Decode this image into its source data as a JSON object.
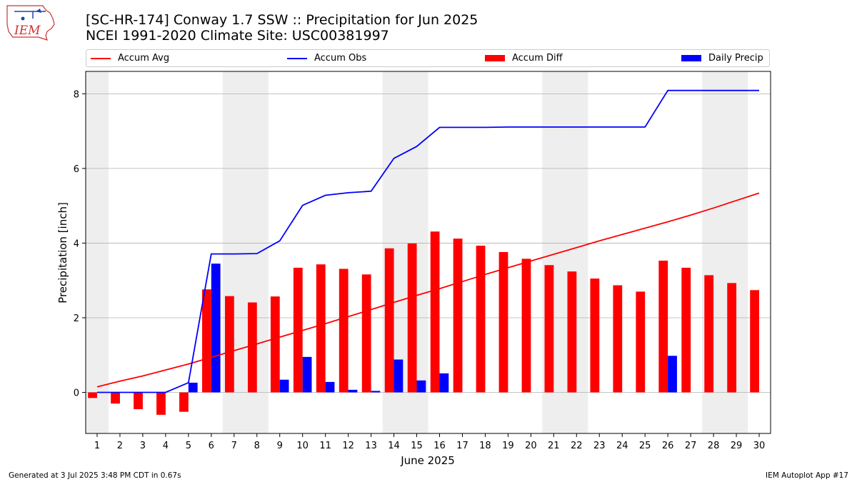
{
  "title": "[SC-HR-174] Conway 1.7 SSW :: Precipitation for Jun 2025",
  "subtitle": "NCEI 1991-2020 Climate Site: USC00381997",
  "logo_text": "IEM",
  "footer_left": "Generated at 3 Jul 2025 3:48 PM CDT in 0.67s",
  "footer_right": "IEM Autoplot App #17",
  "colors": {
    "accum_avg": "#ff0000",
    "accum_obs": "#0000ff",
    "accum_diff": "#ff0000",
    "daily_precip": "#0000ff",
    "weekend_band": "#eeeeee",
    "grid": "#b0b0b0"
  },
  "chart_data": {
    "type": "bar",
    "xlabel": "June 2025",
    "ylabel": "Precipitation [inch]",
    "x": [
      1,
      2,
      3,
      4,
      5,
      6,
      7,
      8,
      9,
      10,
      11,
      12,
      13,
      14,
      15,
      16,
      17,
      18,
      19,
      20,
      21,
      22,
      23,
      24,
      25,
      26,
      27,
      28,
      29,
      30
    ],
    "x_ticks": [
      "1",
      "2",
      "3",
      "4",
      "5",
      "6",
      "7",
      "8",
      "9",
      "10",
      "11",
      "12",
      "13",
      "14",
      "15",
      "16",
      "17",
      "18",
      "19",
      "20",
      "21",
      "22",
      "23",
      "24",
      "25",
      "26",
      "27",
      "28",
      "29",
      "30"
    ],
    "xlim": [
      0.5,
      30.5
    ],
    "ylim": [
      -1.1,
      8.6
    ],
    "y_ticks": [
      0,
      2,
      4,
      6,
      8
    ],
    "y_tick_labels": [
      "0",
      "2",
      "4",
      "6",
      "8"
    ],
    "grid": "horizontal",
    "legend_position": "top",
    "weekend_days": [
      1,
      7,
      8,
      14,
      15,
      21,
      22,
      28,
      29
    ],
    "series": [
      {
        "name": "Accum Avg",
        "kind": "line",
        "values": [
          0.15,
          0.3,
          0.44,
          0.6,
          0.76,
          0.94,
          1.12,
          1.3,
          1.48,
          1.66,
          1.84,
          2.03,
          2.22,
          2.41,
          2.6,
          2.78,
          2.97,
          3.16,
          3.34,
          3.52,
          3.7,
          3.88,
          4.06,
          4.23,
          4.4,
          4.57,
          4.75,
          4.94,
          5.14,
          5.34
        ]
      },
      {
        "name": "Accum Obs",
        "kind": "line",
        "values": [
          0.0,
          0.0,
          0.0,
          0.0,
          0.26,
          3.71,
          3.71,
          3.72,
          4.06,
          5.01,
          5.28,
          5.35,
          5.39,
          6.27,
          6.59,
          7.1,
          7.1,
          7.1,
          7.11,
          7.11,
          7.11,
          7.11,
          7.11,
          7.11,
          7.11,
          8.09,
          8.09,
          8.09,
          8.09,
          8.09
        ]
      },
      {
        "name": "Accum Diff",
        "kind": "bar",
        "values": [
          -0.15,
          -0.3,
          -0.45,
          -0.6,
          -0.52,
          2.76,
          2.58,
          2.41,
          2.57,
          3.34,
          3.43,
          3.31,
          3.16,
          3.86,
          3.99,
          4.31,
          4.12,
          3.93,
          3.76,
          3.58,
          3.41,
          3.24,
          3.05,
          2.87,
          2.7,
          3.53,
          3.34,
          3.14,
          2.93,
          2.74
        ]
      },
      {
        "name": "Daily Precip",
        "kind": "bar",
        "values": [
          0,
          0,
          0,
          0,
          0.26,
          3.45,
          0,
          0,
          0.34,
          0.95,
          0.28,
          0.07,
          0.04,
          0.88,
          0.32,
          0.51,
          0,
          0,
          0,
          0,
          0,
          0,
          0,
          0,
          0,
          0.98,
          0,
          0,
          0,
          0
        ]
      }
    ]
  }
}
